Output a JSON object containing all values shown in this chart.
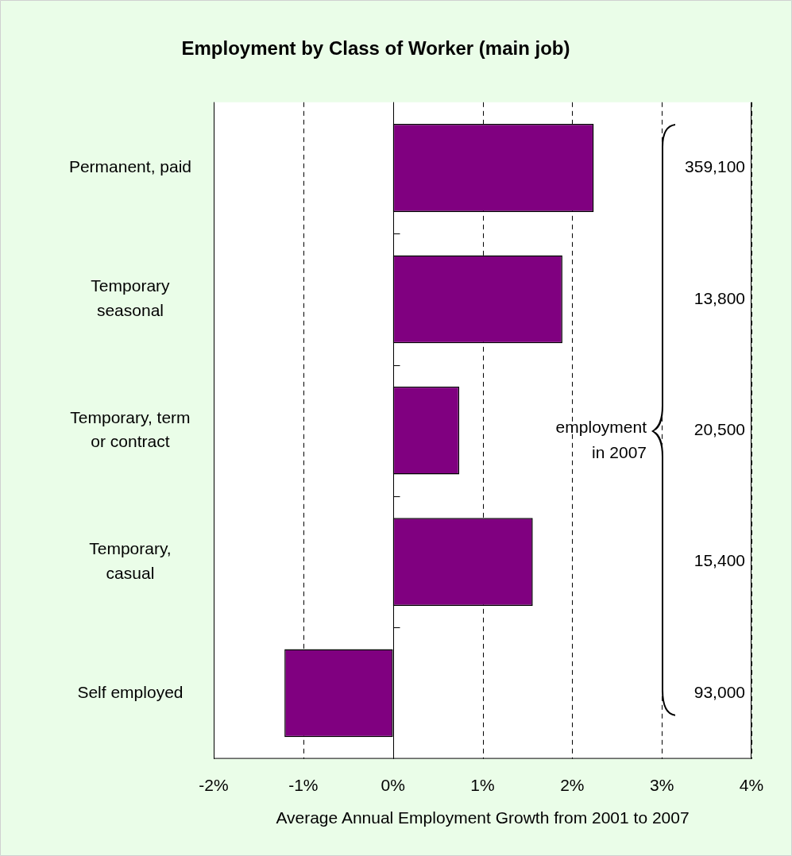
{
  "chart_data": {
    "type": "bar",
    "orientation": "horizontal",
    "title": "Employment by Class of Worker (main job)",
    "xlabel": "Average Annual Employment Growth from 2001 to 2007",
    "categories": [
      "Permanent, paid",
      "Temporary\nseasonal",
      "Temporary, term\nor contract",
      "Temporary,\ncasual",
      "Self employed"
    ],
    "values": [
      2.24,
      1.89,
      0.74,
      1.56,
      -1.21
    ],
    "color": "#800080",
    "xlim": [
      -2,
      4
    ],
    "xticks": [
      {
        "value": -2,
        "label": "-2%"
      },
      {
        "value": -1,
        "label": "-1%"
      },
      {
        "value": 0,
        "label": "0%"
      },
      {
        "value": 1,
        "label": "1%"
      },
      {
        "value": 2,
        "label": "2%"
      },
      {
        "value": 3,
        "label": "3%"
      },
      {
        "value": 4,
        "label": "4%"
      }
    ],
    "grid": "x",
    "annotations": [
      "359,100",
      "13,800",
      "20,500",
      "15,400",
      "93,000",
      "employment in 2007"
    ]
  }
}
